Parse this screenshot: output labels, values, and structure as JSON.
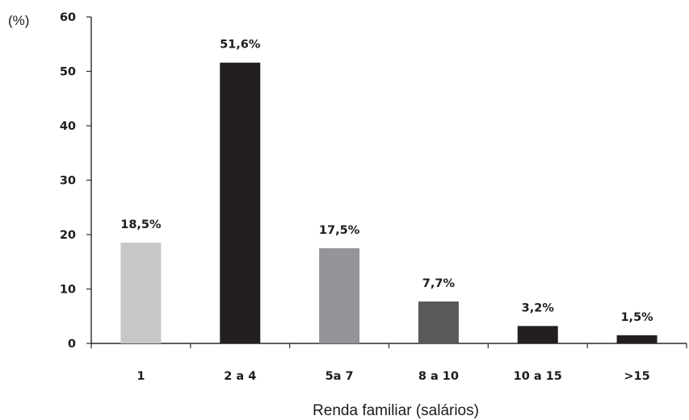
{
  "chart_data": {
    "type": "bar",
    "categories": [
      "1",
      "2 a 4",
      "5a 7",
      "8 a 10",
      "10 a 15",
      ">15"
    ],
    "values": [
      18.5,
      51.6,
      17.5,
      7.7,
      3.2,
      1.5
    ],
    "data_labels": [
      "18,5%",
      "51,6%",
      "17,5%",
      "7,7%",
      "3,2%",
      "1,5%"
    ],
    "bar_colors": [
      "#c6c7c9",
      "#231f20",
      "#939598",
      "#58595b",
      "#231f20",
      "#231f20"
    ],
    "ylim": [
      0,
      60
    ],
    "yticks": [
      0,
      10,
      20,
      30,
      40,
      50,
      60
    ],
    "ylabel": "(%)",
    "xlabel": "Renda familiar (salários)",
    "title": "",
    "grid": false,
    "legend": "none"
  }
}
